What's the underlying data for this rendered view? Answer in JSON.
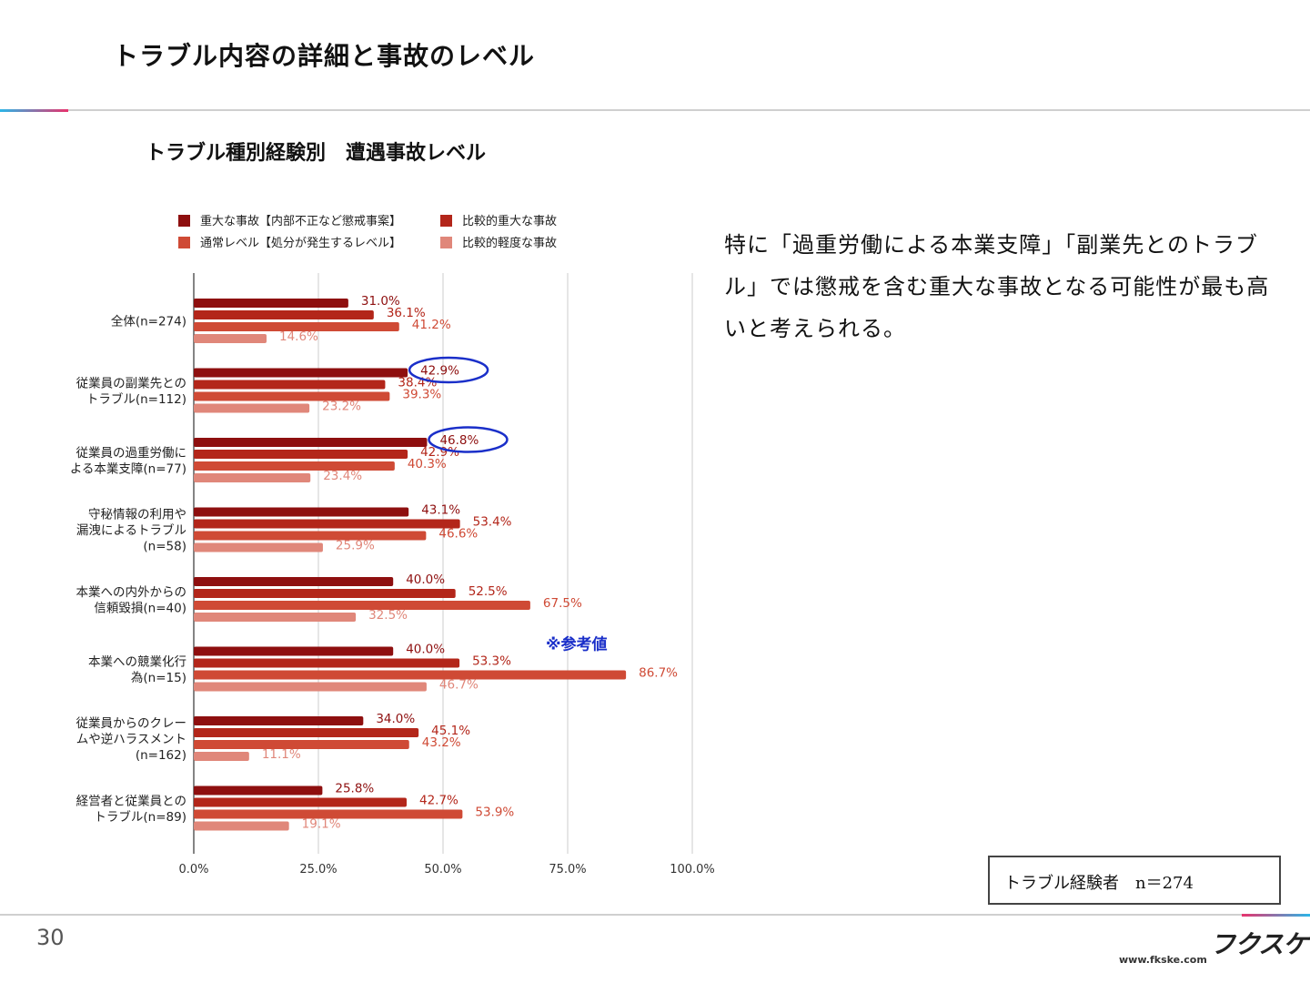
{
  "slide": {
    "title": "トラブル内容の詳細と事故のレベル",
    "chart_title": "トラブル種別経験別　遭遇事故レベル",
    "commentary": "特に「過重労働による本業支障」「副業先とのトラブル」では懲戒を含む重大な事故となる可能性が最も高いと考えられる。",
    "sample_box": "トラブル経験者　n＝274",
    "reference_note": "※参考値",
    "page_number": "30",
    "logo_text": "フクスケ",
    "url": "www.fkske.com"
  },
  "chart_data": {
    "type": "bar",
    "orientation": "horizontal",
    "categories": [
      [
        "全体(n=274)"
      ],
      [
        "従業員の副業先との",
        "トラブル(n=112)"
      ],
      [
        "従業員の過重労働に",
        "よる本業支障(n=77)"
      ],
      [
        "守秘情報の利用や",
        "漏洩によるトラブル",
        "(n=58)"
      ],
      [
        "本業への内外からの",
        "信頼毀損(n=40)"
      ],
      [
        "本業への競業化行",
        "為(n=15)"
      ],
      [
        "従業員からのクレー",
        "ムや逆ハラスメント",
        "(n=162)"
      ],
      [
        "経営者と従業員との",
        "トラブル(n=89)"
      ]
    ],
    "series": [
      {
        "name": "重大な事故【内部不正など懲戒事案】",
        "color": "#8e0f0f",
        "values": [
          31.0,
          42.9,
          46.8,
          43.1,
          40.0,
          40.0,
          34.0,
          25.8
        ]
      },
      {
        "name": "比較的重大な事故",
        "color": "#b3261a",
        "values": [
          36.1,
          38.4,
          42.9,
          53.4,
          52.5,
          53.3,
          45.1,
          42.7
        ]
      },
      {
        "name": "通常レベル【処分が発生するレベル】",
        "color": "#cf4a35",
        "values": [
          41.2,
          39.3,
          40.3,
          46.6,
          67.5,
          86.7,
          43.2,
          53.9
        ]
      },
      {
        "name": "比較的軽度な事故",
        "color": "#e0877a",
        "values": [
          14.6,
          23.2,
          23.4,
          25.9,
          32.5,
          46.7,
          11.1,
          19.1
        ]
      }
    ],
    "value_suffix": "%",
    "xlim": [
      0,
      100
    ],
    "xticks": [
      "0.0%",
      "25.0%",
      "50.0%",
      "75.0%",
      "100.0%"
    ],
    "grid": true,
    "legend_position": "top",
    "highlight_circles": [
      {
        "category_index": 1,
        "series_index": 0
      },
      {
        "category_index": 2,
        "series_index": 0
      }
    ],
    "reference_marker": {
      "category_index": 5
    }
  }
}
